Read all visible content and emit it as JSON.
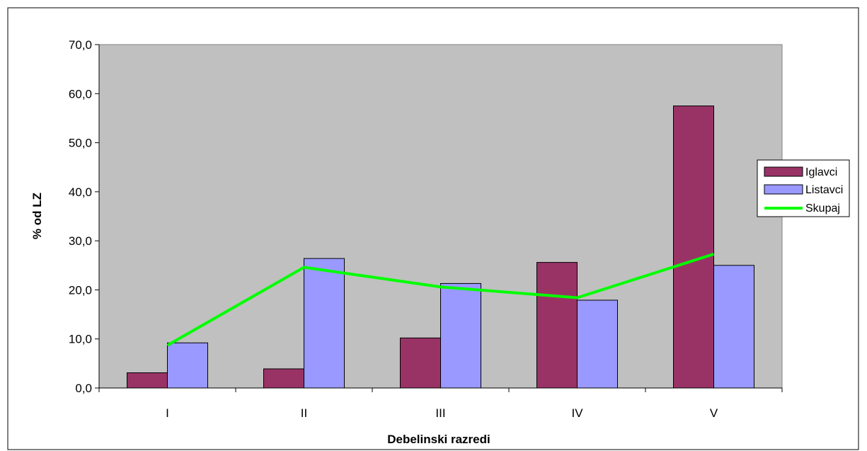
{
  "chart_data": {
    "type": "bar",
    "title": "",
    "xlabel": "Debelinski razredi",
    "ylabel": "% od LZ",
    "categories": [
      "I",
      "II",
      "III",
      "IV",
      "V"
    ],
    "ylim": [
      0,
      70
    ],
    "yticks": [
      "0,0",
      "10,0",
      "20,0",
      "30,0",
      "40,0",
      "50,0",
      "60,0",
      "70,0"
    ],
    "ytick_values": [
      0,
      10,
      20,
      30,
      40,
      50,
      60,
      70
    ],
    "grid": false,
    "legend_position": "right",
    "series": [
      {
        "name": "Iglavci",
        "kind": "bar",
        "color": "#993366",
        "values": [
          3.1,
          3.9,
          10.2,
          25.6,
          57.5
        ]
      },
      {
        "name": "Listavci",
        "kind": "bar",
        "color": "#9999FF",
        "values": [
          9.2,
          26.4,
          21.3,
          17.9,
          25.0
        ]
      },
      {
        "name": "Skupaj",
        "kind": "line",
        "color": "#00FF00",
        "values": [
          8.7,
          24.6,
          20.6,
          18.4,
          27.3
        ]
      }
    ],
    "plot_background": "#C0C0C0"
  }
}
